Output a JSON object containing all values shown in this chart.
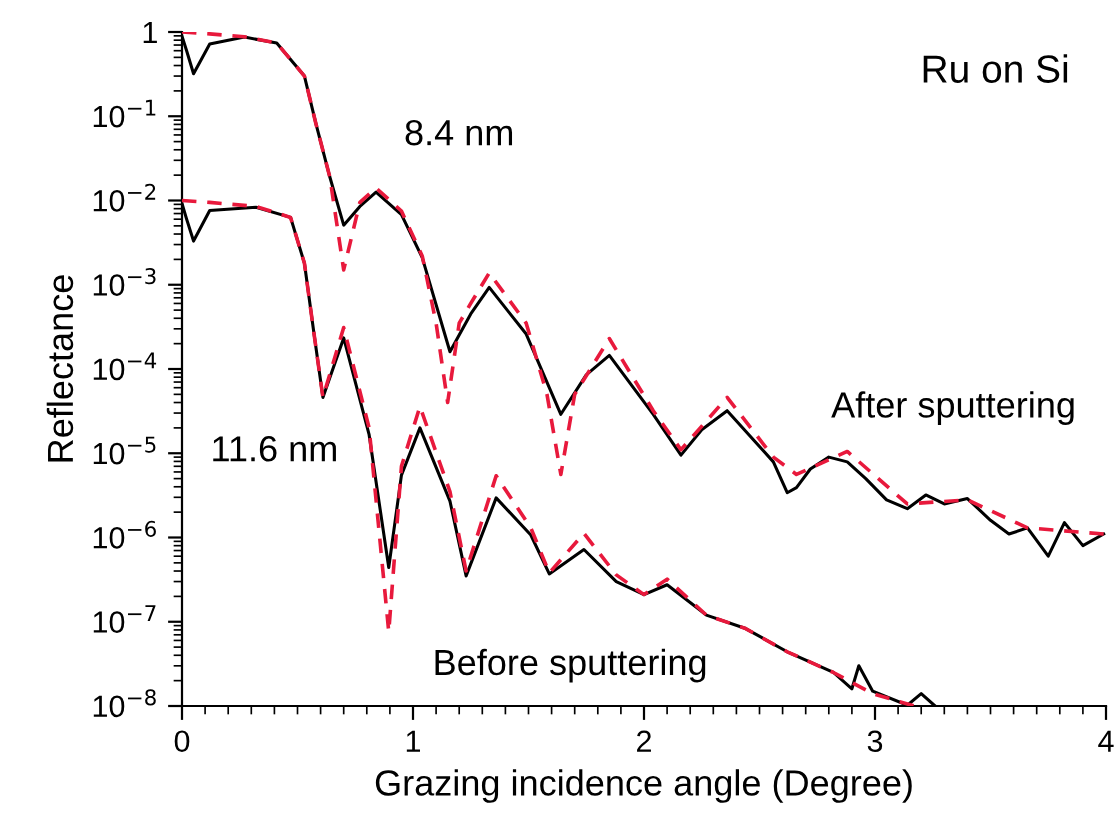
{
  "chart_data": {
    "type": "line",
    "title": "Ru on Si",
    "xlabel": "Grazing incidence angle (Degree)",
    "ylabel": "Reflectance",
    "log": "y",
    "xlim": [
      0,
      4
    ],
    "ylim": [
      1e-08,
      1
    ],
    "xticks": [
      0,
      1,
      2,
      3,
      4
    ],
    "yticks": [
      {
        "value": 1e-08,
        "label": "10$^{−8}$"
      },
      {
        "value": 1e-07,
        "label": "10$^{−7}$"
      },
      {
        "value": 1e-06,
        "label": "10$^{−6}$"
      },
      {
        "value": 1e-05,
        "label": "10$^{−5}$"
      },
      {
        "value": 0.0001,
        "label": "10$^{−4}$"
      },
      {
        "value": 0.001,
        "label": "10$^{−3}$"
      },
      {
        "value": 0.01,
        "label": "10$^{−2}$"
      },
      {
        "value": 0.1,
        "label": "10$^{−1}$"
      },
      1
    ],
    "grid": false,
    "legend": false,
    "marker": "none",
    "series": [
      {
        "color": "#000000",
        "line_style": "solid",
        "x": [
          0,
          0.02,
          0.05,
          0.12,
          0.27,
          0.41,
          0.53,
          0.58,
          0.64,
          0.7,
          0.77,
          0.84,
          0.95,
          1.04,
          1.16,
          1.25,
          1.33,
          1.49,
          1.64,
          1.75,
          1.85,
          2.04,
          2.16,
          2.25,
          2.36,
          2.56,
          2.62,
          2.66,
          2.72,
          2.8,
          2.88,
          2.96,
          3.05,
          3.14,
          3.22,
          3.3,
          3.4,
          3.5,
          3.58,
          3.66,
          3.75,
          3.82,
          3.9,
          3.99
        ],
        "values": [
          0.89,
          0.6,
          0.32,
          0.72,
          0.87,
          0.74,
          0.3,
          0.081,
          0.019,
          0.0051,
          0.0085,
          0.0126,
          0.0068,
          0.0021,
          0.00016,
          0.00045,
          0.00093,
          0.00026,
          2.9e-05,
          8.5e-05,
          0.000145,
          2.9e-05,
          9.5e-06,
          1.9e-05,
          3.2e-05,
          7.9e-06,
          3.4e-06,
          3.9e-06,
          6.5e-06,
          9e-06,
          7.9e-06,
          5e-06,
          2.8e-06,
          2.2e-06,
          3.2e-06,
          2.5e-06,
          2.9e-06,
          1.6e-06,
          1.1e-06,
          1.3e-06,
          6e-07,
          1.5e-06,
          8e-07,
          1.1e-06
        ]
      },
      {
        "color": "#e8193c",
        "line_style": "dashed",
        "x": [
          0,
          0.12,
          0.27,
          0.41,
          0.53,
          0.58,
          0.64,
          0.7,
          0.77,
          0.84,
          0.95,
          1.04,
          1.1,
          1.15,
          1.2,
          1.25,
          1.33,
          1.49,
          1.58,
          1.64,
          1.7,
          1.85,
          2.04,
          2.16,
          2.36,
          2.56,
          2.66,
          2.88,
          3.14,
          3.4,
          3.66,
          3.99
        ],
        "values": [
          1,
          0.95,
          0.88,
          0.74,
          0.3,
          0.081,
          0.019,
          0.0015,
          0.0095,
          0.0141,
          0.0075,
          0.0022,
          0.00035,
          4e-05,
          0.00035,
          0.0006,
          0.00138,
          0.00035,
          5e-05,
          5.6e-06,
          5e-05,
          0.00023,
          3.2e-05,
          1.1e-05,
          4.6e-05,
          9e-06,
          5.6e-06,
          1.05e-05,
          2.5e-06,
          2.8e-06,
          1.3e-06,
          1.1e-06
        ]
      },
      {
        "color": "#000000",
        "line_style": "solid",
        "x": [
          0,
          0.02,
          0.05,
          0.12,
          0.32,
          0.47,
          0.53,
          0.57,
          0.61,
          0.7,
          0.81,
          0.895,
          0.95,
          1.03,
          1.16,
          1.23,
          1.36,
          1.51,
          1.59,
          1.74,
          1.88,
          2.0,
          2.1,
          2.27,
          2.44,
          2.62,
          2.82,
          2.9,
          2.93,
          2.99,
          3.14,
          3.2,
          3.26
        ],
        "values": [
          0.0092,
          0.006,
          0.0033,
          0.0076,
          0.0083,
          0.0063,
          0.0018,
          0.00028,
          4.6e-05,
          0.000234,
          1.66e-05,
          4.4e-07,
          5.5e-06,
          2e-05,
          2.7e-06,
          3.5e-07,
          2.95e-06,
          1.07e-06,
          3.7e-07,
          7.2e-07,
          3e-07,
          2.1e-07,
          2.75e-07,
          1.2e-07,
          8.3e-08,
          4.4e-08,
          2.5e-08,
          1.6e-08,
          3e-08,
          1.5e-08,
          1.02e-08,
          1.4e-08,
          1e-08
        ]
      },
      {
        "color": "#e8193c",
        "line_style": "dashed",
        "x": [
          0,
          0.12,
          0.32,
          0.47,
          0.53,
          0.57,
          0.61,
          0.7,
          0.81,
          0.895,
          0.95,
          1.03,
          1.16,
          1.23,
          1.36,
          1.51,
          1.59,
          1.74,
          1.88,
          2.0,
          2.1,
          2.27,
          2.44,
          2.62,
          2.82,
          2.99,
          3.17
        ],
        "values": [
          0.01,
          0.0095,
          0.0085,
          0.0063,
          0.0018,
          0.00028,
          4.6e-05,
          0.00031,
          2e-05,
          7.6e-08,
          7e-06,
          3.6e-05,
          3.5e-06,
          4e-07,
          5.4e-06,
          1.3e-06,
          3.8e-07,
          1.12e-06,
          3.6e-07,
          2.1e-07,
          3.2e-07,
          1.2e-07,
          8.3e-08,
          4.4e-08,
          2.5e-08,
          1.4e-08,
          1e-08
        ]
      }
    ],
    "annotations": [
      "8.4 nm",
      "11.6 nm",
      "After sputtering",
      "Before sputtering"
    ]
  }
}
